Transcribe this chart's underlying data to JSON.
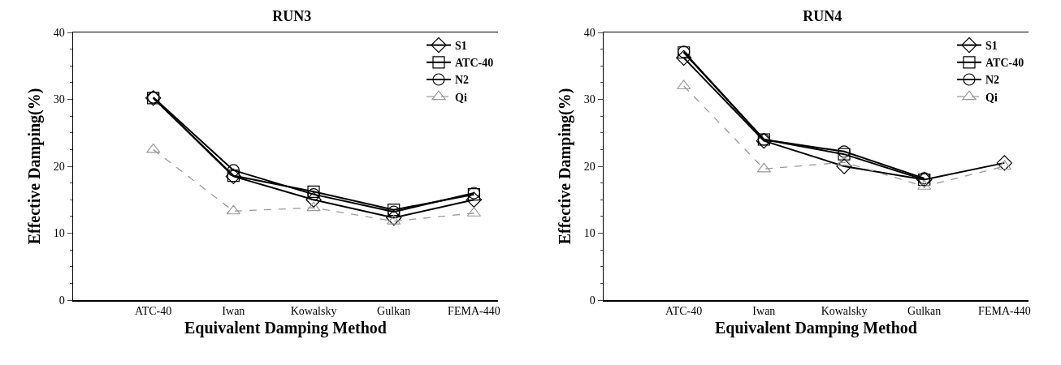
{
  "chart_data": [
    {
      "type": "line",
      "title": "RUN3",
      "xlabel": "Equivalent Damping Method",
      "ylabel": "Effective Damping(%)",
      "categories": [
        "ATC-40",
        "Iwan",
        "Kowalsky",
        "Gulkan",
        "FEMA-440"
      ],
      "ylim": [
        0,
        40
      ],
      "yticks": [
        0,
        10,
        20,
        30,
        40
      ],
      "grid": false,
      "legend": "top right",
      "series": [
        {
          "name": "S1",
          "color": "#000000",
          "marker": "diamond",
          "line_style": "solid",
          "values": [
            30.2,
            18.5,
            15.0,
            12.3,
            15.0
          ]
        },
        {
          "name": "ATC-40",
          "color": "#000000",
          "marker": "square",
          "line_style": "solid",
          "values": [
            30.2,
            18.6,
            16.2,
            13.5,
            15.8
          ]
        },
        {
          "name": "N2",
          "color": "#000000",
          "marker": "circle",
          "line_style": "solid",
          "values": [
            30.3,
            19.4,
            15.8,
            13.2,
            16.0
          ]
        },
        {
          "name": "Qi",
          "color": "#999999",
          "marker": "triangle",
          "line_style": "dashed",
          "values": [
            22.5,
            13.3,
            13.8,
            11.8,
            13.0
          ]
        }
      ]
    },
    {
      "type": "line",
      "title": "RUN4",
      "xlabel": "Equivalent Damping Method",
      "ylabel": "Effective Damping(%)",
      "categories": [
        "ATC-40",
        "Iwan",
        "Kowalsky",
        "Gulkan",
        "FEMA-440"
      ],
      "ylim": [
        0,
        40
      ],
      "yticks": [
        0,
        10,
        20,
        30,
        40
      ],
      "grid": false,
      "legend": "top right",
      "series": [
        {
          "name": "S1",
          "color": "#000000",
          "marker": "diamond",
          "line_style": "solid",
          "values": [
            36.2,
            23.8,
            20.0,
            18.0,
            20.5
          ]
        },
        {
          "name": "ATC-40",
          "color": "#000000",
          "marker": "square",
          "line_style": "solid",
          "values": [
            37.0,
            24.0,
            21.8,
            18.0,
            null
          ]
        },
        {
          "name": "N2",
          "color": "#000000",
          "marker": "circle",
          "line_style": "solid",
          "values": [
            37.1,
            24.0,
            22.2,
            18.2,
            null
          ]
        },
        {
          "name": "Qi",
          "color": "#999999",
          "marker": "triangle",
          "line_style": "dashed",
          "values": [
            32.0,
            19.6,
            20.6,
            17.0,
            20.0
          ]
        }
      ]
    }
  ]
}
